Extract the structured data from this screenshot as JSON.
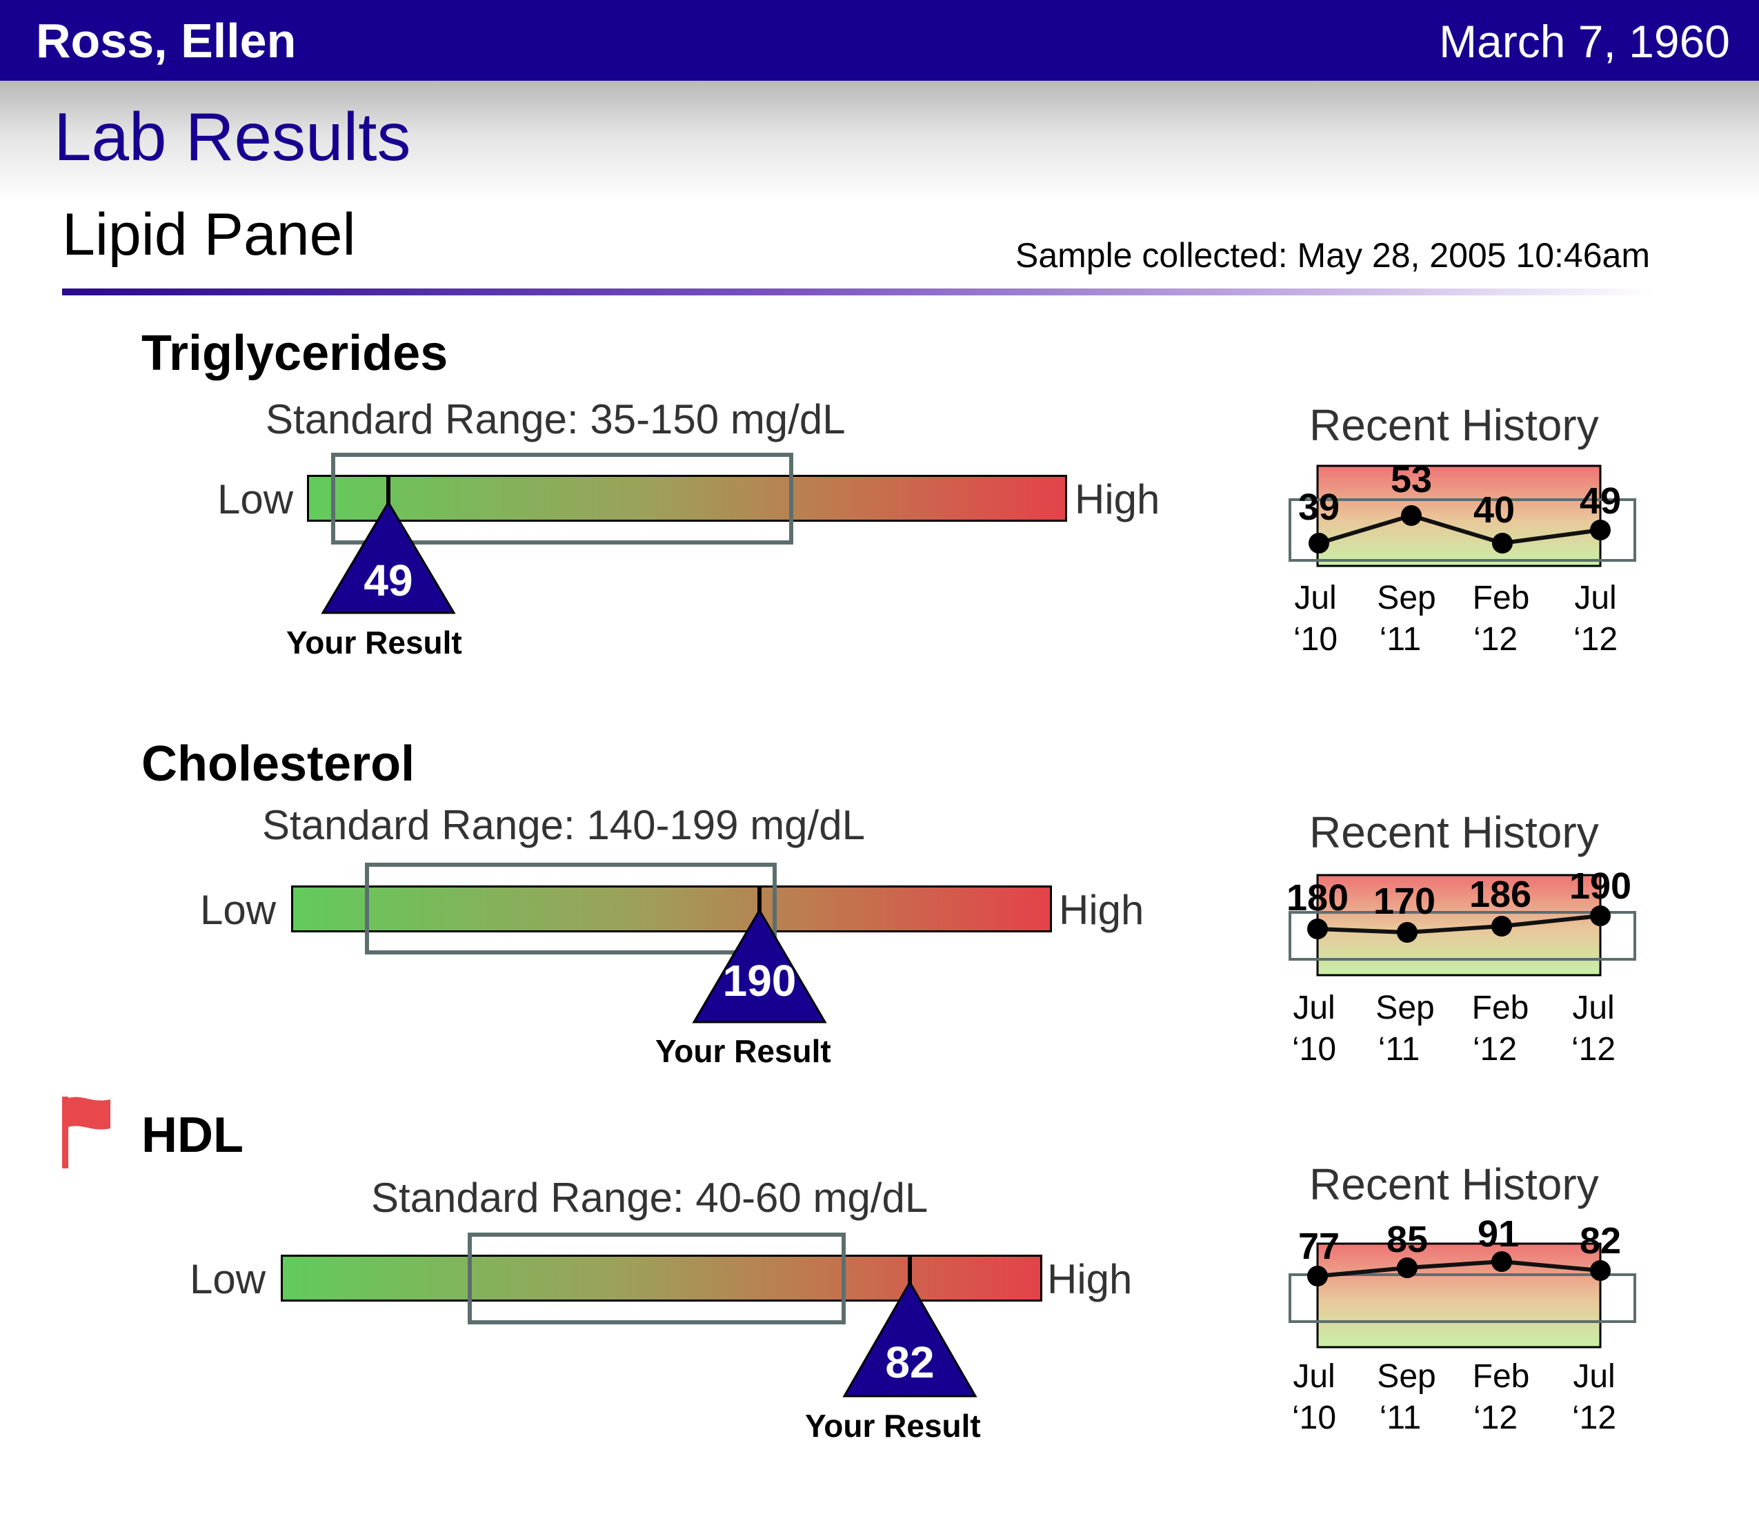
{
  "header": {
    "patient_name": "Ross, Ellen",
    "patient_dob": "March 7, 1960"
  },
  "page": {
    "title": "Lab Results"
  },
  "panel": {
    "title": "Lipid Panel",
    "sample_collected": "Sample collected: May 28, 2005 10:46am"
  },
  "labels": {
    "low": "Low",
    "high": "High",
    "your_result": "Your Result",
    "recent_history": "Recent History"
  },
  "colors": {
    "brand": "#170090",
    "flag": "#e8484c"
  },
  "tests": [
    {
      "name": "Triglycerides",
      "range_label": "Standard Range: 35-150 mg/dL",
      "result": "49",
      "flagged": false,
      "history_months": [
        "Jul",
        "Sep",
        "Feb",
        "Jul"
      ],
      "history_years": [
        "‘10",
        "‘11",
        "‘12",
        "‘12"
      ],
      "history_values": [
        "39",
        "53",
        "40",
        "49"
      ]
    },
    {
      "name": "Cholesterol",
      "range_label": "Standard Range: 140-199 mg/dL",
      "result": "190",
      "flagged": false,
      "history_months": [
        "Jul",
        "Sep",
        "Feb",
        "Jul"
      ],
      "history_years": [
        "‘10",
        "‘11",
        "‘12",
        "‘12"
      ],
      "history_values": [
        "180",
        "170",
        "186",
        "190"
      ]
    },
    {
      "name": "HDL",
      "range_label": "Standard Range: 40-60 mg/dL",
      "result": "82",
      "flagged": true,
      "flag_icon": "flag-icon",
      "history_months": [
        "Jul",
        "Sep",
        "Feb",
        "Jul"
      ],
      "history_years": [
        "‘10",
        "‘11",
        "‘12",
        "‘12"
      ],
      "history_values": [
        "77",
        "85",
        "91",
        "82"
      ]
    }
  ]
}
